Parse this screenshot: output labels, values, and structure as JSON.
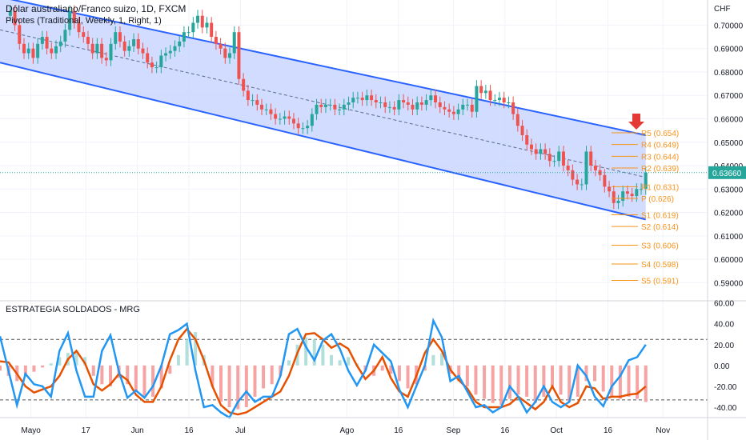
{
  "header": {
    "symbol_title": "Dólar australiano/Franco suizo, 1D, FXCM",
    "indicator_label": "Pivotes (Traditional, Weekly, 1, Right, 1)",
    "currency": "CHF",
    "last_price": "0.63660"
  },
  "colors": {
    "up": "#26a69a",
    "down": "#ef5350",
    "channel_line": "#2962ff",
    "channel_fill": "#c9d6ff",
    "pivot": "#f7931a",
    "osc_blue": "#2196f3",
    "osc_orange": "#e65100",
    "hist_up": "#b2dfdb",
    "hist_down": "#f5a3a3",
    "arrow": "#e53935"
  },
  "arrow_icon": "down-arrow-icon",
  "chart_data": [
    {
      "type": "candlestick",
      "title": "Dólar australiano/Franco suizo, 1D, FXCM",
      "ylabel": "CHF",
      "ylim": [
        0.585,
        0.708
      ],
      "y_ticks": [
        "0.59000",
        "0.60000",
        "0.61000",
        "0.62000",
        "0.63000",
        "0.64000",
        "0.65000",
        "0.66000",
        "0.67000",
        "0.68000",
        "0.69000",
        "0.70000"
      ],
      "x_ticks": [
        "Mayo",
        "17",
        "Jun",
        "16",
        "Jul",
        "Ago",
        "16",
        "Sep",
        "16",
        "Oct",
        "16",
        "Nov"
      ],
      "x_range": [
        "2022-04-22",
        "2022-11-14"
      ],
      "x_tick_dates": [
        "2022-05-01",
        "2022-05-17",
        "2022-06-01",
        "2022-06-16",
        "2022-07-01",
        "2022-08-01",
        "2022-08-16",
        "2022-09-01",
        "2022-09-16",
        "2022-10-01",
        "2022-10-16",
        "2022-11-01"
      ],
      "close": [
        0.706,
        0.7,
        0.692,
        0.688,
        0.69,
        0.686,
        0.692,
        0.695,
        0.69,
        0.688,
        0.691,
        0.693,
        0.698,
        0.706,
        0.701,
        0.697,
        0.695,
        0.692,
        0.688,
        0.692,
        0.686,
        0.685,
        0.692,
        0.697,
        0.693,
        0.689,
        0.691,
        0.694,
        0.69,
        0.688,
        0.684,
        0.682,
        0.682,
        0.687,
        0.688,
        0.689,
        0.691,
        0.693,
        0.697,
        0.697,
        0.701,
        0.704,
        0.699,
        0.701,
        0.695,
        0.692,
        0.69,
        0.686,
        0.688,
        0.697,
        0.677,
        0.672,
        0.668,
        0.668,
        0.666,
        0.664,
        0.664,
        0.662,
        0.66,
        0.66,
        0.661,
        0.66,
        0.658,
        0.656,
        0.656,
        0.657,
        0.662,
        0.666,
        0.665,
        0.666,
        0.666,
        0.664,
        0.664,
        0.666,
        0.667,
        0.669,
        0.669,
        0.668,
        0.67,
        0.668,
        0.667,
        0.667,
        0.665,
        0.665,
        0.664,
        0.668,
        0.667,
        0.666,
        0.664,
        0.667,
        0.666,
        0.668,
        0.67,
        0.667,
        0.665,
        0.664,
        0.663,
        0.662,
        0.664,
        0.666,
        0.666,
        0.663,
        0.674,
        0.671,
        0.672,
        0.668,
        0.668,
        0.669,
        0.667,
        0.667,
        0.662,
        0.657,
        0.653,
        0.649,
        0.647,
        0.645,
        0.647,
        0.645,
        0.642,
        0.642,
        0.646,
        0.64,
        0.638,
        0.634,
        0.632,
        0.632,
        0.646,
        0.64,
        0.638,
        0.636,
        0.631,
        0.629,
        0.624,
        0.625,
        0.629,
        0.628,
        0.627,
        0.63,
        0.63,
        0.637
      ],
      "highs": {
        "start": 0.708,
        "end": 0.639
      },
      "pivots": [
        {
          "label": "R5 (0.654)",
          "value": 0.654
        },
        {
          "label": "R4 (0.649)",
          "value": 0.649
        },
        {
          "label": "R3 (0.644)",
          "value": 0.644
        },
        {
          "label": "R2 (0.639)",
          "value": 0.639
        },
        {
          "label": "R1 (0.631)",
          "value": 0.631
        },
        {
          "label": "P (0.626)",
          "value": 0.626
        },
        {
          "label": "S1 (0.619)",
          "value": 0.619
        },
        {
          "label": "S2 (0.614)",
          "value": 0.614
        },
        {
          "label": "S3 (0.606)",
          "value": 0.606
        },
        {
          "label": "S4 (0.598)",
          "value": 0.598
        },
        {
          "label": "S5 (0.591)",
          "value": 0.591
        }
      ],
      "channel": {
        "upper": [
          [
            "2022-04-22",
            0.712
          ],
          [
            "2022-10-27",
            0.653
          ]
        ],
        "lower": [
          [
            "2022-04-22",
            0.684
          ],
          [
            "2022-10-27",
            0.617
          ]
        ],
        "middle": [
          [
            "2022-04-22",
            0.698
          ],
          [
            "2022-10-27",
            0.635
          ]
        ]
      }
    },
    {
      "type": "line",
      "title": "ESTRATEGIA SOLDADOS - MRG",
      "ylim": [
        -50,
        62
      ],
      "y_ticks": [
        "60.00",
        "40.00",
        "20.00",
        "0.00",
        "-20.00",
        "-40.00"
      ],
      "y_tick_values": [
        60,
        40,
        20,
        0,
        -20,
        -40
      ],
      "reference_lines": [
        25,
        -33
      ],
      "series": [
        {
          "values": [
            28,
            -5,
            -38,
            -8,
            -18,
            -20,
            -30,
            14,
            31,
            -5,
            -30,
            -30,
            14,
            29,
            -6,
            -31,
            -24,
            -31,
            -20,
            0,
            30,
            34,
            40,
            -5,
            -40,
            -38,
            -45,
            -50,
            -35,
            -25,
            -35,
            -30,
            -30,
            -10,
            30,
            35,
            18,
            5,
            24,
            30,
            16,
            -5,
            -19,
            -5,
            20,
            12,
            4,
            -23,
            -40,
            -20,
            0,
            43,
            27,
            -15,
            -10,
            -25,
            -40,
            -38,
            -45,
            -40,
            -20,
            -30,
            -45,
            -35,
            -20,
            -35,
            -40,
            -35,
            0,
            -10,
            -30,
            -39,
            -20,
            -10,
            5,
            8,
            20
          ]
        },
        {
          "values": [
            4,
            3,
            -8,
            -20,
            -26,
            -23,
            -20,
            -10,
            6,
            14,
            2,
            -18,
            -24,
            -18,
            -8,
            -14,
            -28,
            -35,
            -35,
            -20,
            5,
            25,
            35,
            25,
            5,
            -20,
            -38,
            -45,
            -47,
            -45,
            -40,
            -35,
            -30,
            -25,
            -10,
            12,
            30,
            31,
            25,
            17,
            21,
            16,
            0,
            -13,
            -5,
            8,
            -12,
            -25,
            -30,
            -10,
            12,
            25,
            14,
            -4,
            -14,
            -22,
            -35,
            -40,
            -40,
            -40,
            -37,
            -30,
            -36,
            -42,
            -35,
            -20,
            -35,
            -40,
            -36,
            -20,
            -22,
            -32,
            -30,
            -30,
            -28,
            -27,
            -20
          ]
        },
        {
          "values": [
            -5,
            -10,
            -15,
            -10,
            -6,
            -2,
            2,
            8,
            12,
            14,
            8,
            -10,
            -18,
            -20,
            -12,
            -18,
            -25,
            -30,
            -30,
            -22,
            -8,
            10,
            25,
            32,
            10,
            -20,
            -35,
            -40,
            -42,
            -40,
            -30,
            -22,
            -18,
            -10,
            5,
            20,
            27,
            25,
            20,
            10,
            5,
            8,
            2,
            -5,
            -10,
            -5,
            -8,
            -15,
            -22,
            -18,
            -5,
            10,
            12,
            -8,
            -15,
            -20,
            -28,
            -32,
            -36,
            -38,
            -32,
            -28,
            -30,
            -36,
            -30,
            -20,
            -28,
            -35,
            -30,
            -15,
            -15,
            -25,
            -30,
            -32,
            -30,
            -32,
            -35
          ]
        }
      ]
    }
  ]
}
